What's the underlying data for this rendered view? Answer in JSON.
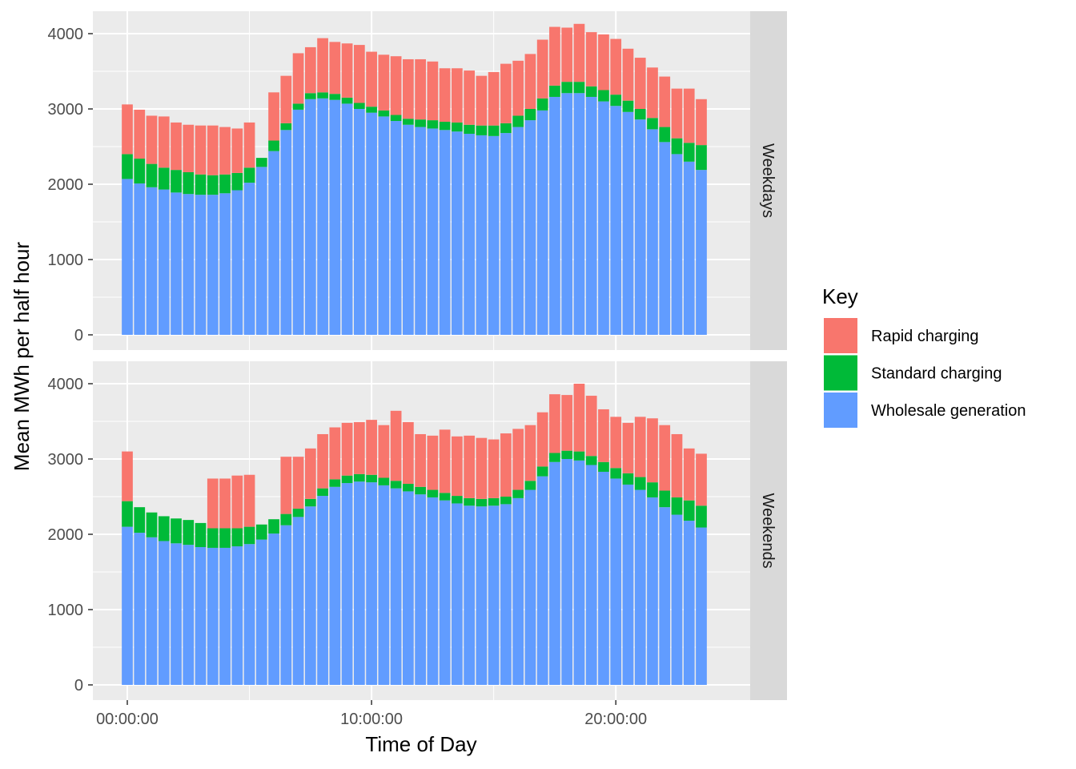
{
  "chart_data": {
    "type": "bar",
    "stacked": true,
    "xlabel": "Time of Day",
    "ylabel": "Mean MWh per half hour",
    "ylim": [
      0,
      4200
    ],
    "y_ticks": [
      0,
      1000,
      2000,
      3000,
      4000
    ],
    "x_ticks": [
      {
        "hours": 0,
        "label": "00:00:00"
      },
      {
        "hours": 10,
        "label": "10:00:00"
      },
      {
        "hours": 20,
        "label": "20:00:00"
      }
    ],
    "x_unit": "hours",
    "x_step_hours": 0.5,
    "grid": true,
    "legend": {
      "title": "Key",
      "position": "right",
      "entries": [
        {
          "label": "Rapid charging",
          "color": "#F8766D"
        },
        {
          "label": "Standard charging",
          "color": "#00BA38"
        },
        {
          "label": "Wholesale generation",
          "color": "#619CFF"
        }
      ]
    },
    "panels": [
      {
        "facet": "Weekdays",
        "series": [
          {
            "name": "Wholesale generation",
            "color": "#619CFF",
            "values": [
              2070,
              2010,
              1960,
              1930,
              1890,
              1870,
              1860,
              1860,
              1880,
              1920,
              2020,
              2230,
              2440,
              2720,
              2990,
              3130,
              3140,
              3120,
              3070,
              3000,
              2950,
              2900,
              2840,
              2790,
              2760,
              2740,
              2720,
              2700,
              2670,
              2650,
              2640,
              2680,
              2760,
              2850,
              2980,
              3160,
              3210,
              3210,
              3160,
              3100,
              3040,
              2960,
              2860,
              2730,
              2560,
              2400,
              2300,
              2190
            ]
          },
          {
            "name": "Standard charging",
            "color": "#00BA38",
            "values": [
              330,
              330,
              310,
              290,
              300,
              290,
              270,
              260,
              250,
              230,
              200,
              120,
              140,
              90,
              80,
              80,
              80,
              80,
              80,
              80,
              80,
              80,
              80,
              80,
              100,
              110,
              110,
              120,
              120,
              130,
              140,
              130,
              150,
              150,
              160,
              150,
              150,
              150,
              140,
              150,
              150,
              150,
              140,
              150,
              200,
              210,
              250,
              330
            ]
          },
          {
            "name": "Rapid charging",
            "color": "#F8766D",
            "values": [
              660,
              650,
              640,
              680,
              630,
              630,
              650,
              660,
              630,
              590,
              600,
              0,
              640,
              630,
              670,
              610,
              720,
              690,
              720,
              770,
              730,
              740,
              780,
              790,
              800,
              780,
              710,
              720,
              720,
              660,
              710,
              790,
              730,
              730,
              780,
              780,
              720,
              770,
              720,
              740,
              740,
              690,
              680,
              670,
              670,
              660,
              720,
              610
            ]
          }
        ]
      },
      {
        "facet": "Weekends",
        "series": [
          {
            "name": "Wholesale generation",
            "color": "#619CFF",
            "values": [
              2100,
              2020,
              1960,
              1910,
              1880,
              1860,
              1830,
              1820,
              1820,
              1840,
              1870,
              1930,
              2010,
              2120,
              2230,
              2370,
              2510,
              2630,
              2680,
              2700,
              2690,
              2650,
              2610,
              2570,
              2530,
              2490,
              2450,
              2410,
              2380,
              2370,
              2380,
              2400,
              2480,
              2590,
              2770,
              2960,
              3000,
              2980,
              2920,
              2830,
              2740,
              2660,
              2590,
              2490,
              2360,
              2260,
              2180,
              2090
            ]
          },
          {
            "name": "Standard charging",
            "color": "#00BA38",
            "values": [
              340,
              340,
              330,
              330,
              330,
              330,
              320,
              260,
              260,
              240,
              230,
              200,
              190,
              150,
              110,
              100,
              100,
              100,
              100,
              100,
              100,
              100,
              100,
              100,
              100,
              100,
              100,
              100,
              100,
              100,
              100,
              100,
              110,
              120,
              130,
              120,
              110,
              120,
              120,
              130,
              140,
              150,
              170,
              200,
              220,
              230,
              270,
              290
            ]
          },
          {
            "name": "Rapid charging",
            "color": "#F8766D",
            "values": [
              660,
              0,
              0,
              0,
              0,
              0,
              0,
              660,
              660,
              700,
              690,
              0,
              0,
              760,
              690,
              670,
              720,
              690,
              700,
              690,
              730,
              700,
              930,
              820,
              700,
              720,
              840,
              790,
              830,
              810,
              780,
              840,
              810,
              740,
              720,
              780,
              740,
              900,
              800,
              700,
              680,
              670,
              800,
              850,
              870,
              840,
              690,
              690
            ]
          }
        ]
      }
    ]
  }
}
